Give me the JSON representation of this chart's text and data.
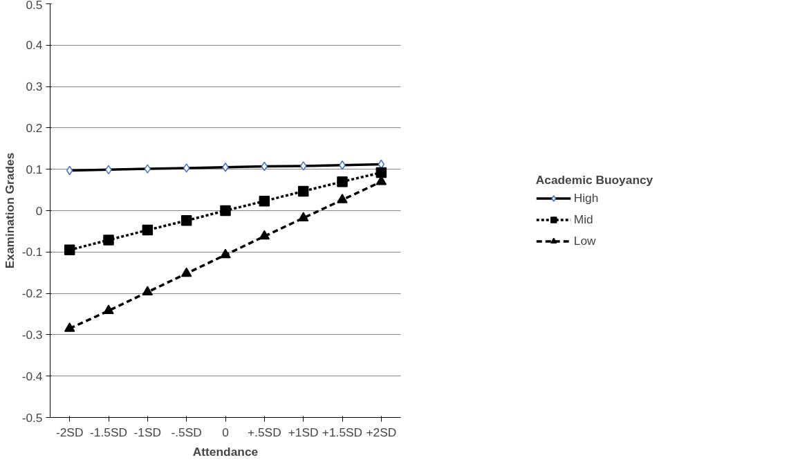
{
  "chart_data": {
    "type": "line",
    "xlabel": "Attendance",
    "ylabel": "Examination Grades",
    "legend_title": "Academic Buoyancy",
    "categories": [
      "-2SD",
      "-1.5SD",
      "-1SD",
      "-.5SD",
      "0",
      "+.5SD",
      "+1SD",
      "+1.5SD",
      "+2SD"
    ],
    "series": [
      {
        "name": "High",
        "color": "#000000",
        "marker": "diamond",
        "line_style": "solid",
        "values": [
          0.097,
          0.099,
          0.101,
          0.103,
          0.105,
          0.107,
          0.108,
          0.11,
          0.112
        ]
      },
      {
        "name": "Mid",
        "color": "#000000",
        "marker": "square",
        "line_style": "dotted",
        "values": [
          -0.095,
          -0.071,
          -0.047,
          -0.024,
          0,
          0.023,
          0.047,
          0.07,
          0.092
        ]
      },
      {
        "name": "Low",
        "color": "#000000",
        "marker": "triangle",
        "line_style": "dashed",
        "values": [
          -0.285,
          -0.242,
          -0.197,
          -0.152,
          -0.107,
          -0.062,
          -0.018,
          0.026,
          0.07
        ]
      }
    ],
    "ylim": [
      -0.5,
      0.5
    ],
    "yticks": [
      -0.5,
      -0.4,
      -0.3,
      -0.2,
      -0.1,
      0,
      0.1,
      0.2,
      0.3,
      0.4,
      0.5
    ],
    "grid": "y",
    "legend": "right"
  }
}
